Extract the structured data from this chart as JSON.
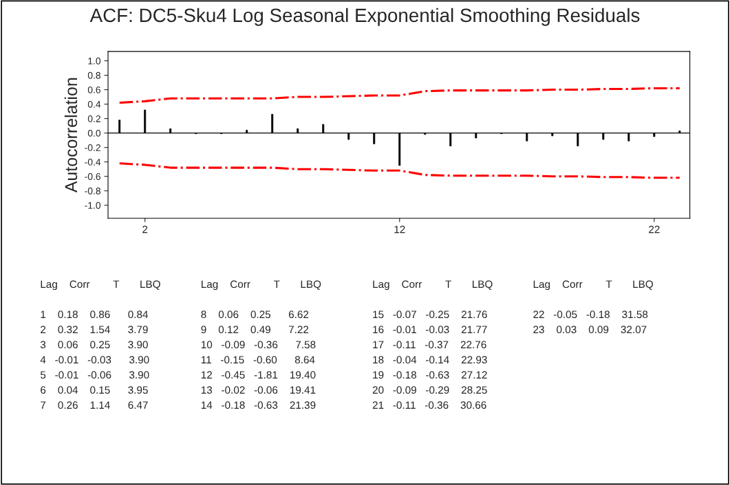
{
  "chart_data": {
    "type": "bar",
    "title": "ACF: DC5-Sku4 Log Seasonal Exponential Smoothing Residuals",
    "ylabel": "Autocorrelation",
    "x": [
      1,
      2,
      3,
      4,
      5,
      6,
      7,
      8,
      9,
      10,
      11,
      12,
      13,
      14,
      15,
      16,
      17,
      18,
      19,
      20,
      21,
      22,
      23
    ],
    "xlim": [
      0.55,
      23.4
    ],
    "xticks": [
      2,
      12,
      22
    ],
    "ylim": [
      -1.18,
      1.13
    ],
    "yticks": [
      {
        "value": -1.0,
        "label": "-1.0"
      },
      {
        "value": -0.8,
        "label": "-0.8"
      },
      {
        "value": -0.6,
        "label": "-0.6"
      },
      {
        "value": -0.4,
        "label": "-0.4"
      },
      {
        "value": -0.2,
        "label": "-0.2"
      },
      {
        "value": 0.0,
        "label": "0.0"
      },
      {
        "value": 0.2,
        "label": "0.2"
      },
      {
        "value": 0.4,
        "label": "0.4"
      },
      {
        "value": 0.6,
        "label": "0.6"
      },
      {
        "value": 0.8,
        "label": "0.8"
      },
      {
        "value": 1.0,
        "label": "1.0"
      }
    ],
    "grid": false,
    "legend": false,
    "series": [
      {
        "color": "#000000",
        "values": [
          0.18,
          0.32,
          0.06,
          -0.01,
          -0.01,
          0.04,
          0.26,
          0.06,
          0.12,
          -0.09,
          -0.15,
          -0.45,
          -0.02,
          -0.18,
          -0.07,
          -0.01,
          -0.11,
          -0.04,
          -0.18,
          -0.09,
          -0.11,
          -0.05,
          0.03
        ]
      },
      {
        "type": "line",
        "color": "#ff0000",
        "line_style": "dashed",
        "values": [
          0.42,
          0.44,
          0.48,
          0.48,
          0.48,
          0.48,
          0.48,
          0.5,
          0.5,
          0.51,
          0.52,
          0.52,
          0.58,
          0.59,
          0.59,
          0.59,
          0.59,
          0.6,
          0.6,
          0.61,
          0.61,
          0.62,
          0.62
        ]
      },
      {
        "type": "line",
        "color": "#ff0000",
        "line_style": "dashed",
        "values": [
          -0.42,
          -0.44,
          -0.48,
          -0.48,
          -0.48,
          -0.48,
          -0.48,
          -0.5,
          -0.5,
          -0.51,
          -0.52,
          -0.52,
          -0.58,
          -0.59,
          -0.59,
          -0.59,
          -0.59,
          -0.6,
          -0.6,
          -0.61,
          -0.61,
          -0.62,
          -0.62
        ]
      }
    ],
    "ref_lines": [
      {
        "axis": "y",
        "value": 0,
        "color": "#000000",
        "line_style": "solid"
      }
    ],
    "annotations": [
      "Lag    Corr        T       LBQ",
      "1    0.18    0.86      0.84",
      "2    0.32    1.54      3.79",
      "3    0.06    0.25      3.90",
      "4   -0.01   -0.03      3.90",
      "5   -0.01   -0.06      3.90",
      "6    0.04    0.15      3.95",
      "7    0.26    1.14      6.47",
      "Lag    Corr        T       LBQ",
      "8    0.06    0.25      6.62",
      "9    0.12    0.49      7.22",
      "10   -0.09   -0.36      7.58",
      "11   -0.15   -0.60      8.64",
      "12   -0.45   -1.81    19.40",
      "13   -0.02   -0.06    19.41",
      "14   -0.18   -0.63    21.39",
      "Lag    Corr        T       LBQ",
      "15   -0.07   -0.25    21.76",
      "16   -0.01   -0.03    21.77",
      "17   -0.11   -0.37    22.76",
      "18   -0.04   -0.14    22.93",
      "19   -0.18   -0.63    27.12",
      "20   -0.09   -0.29    28.25",
      "21   -0.11   -0.36    30.66",
      "Lag    Corr        T       LBQ",
      "22   -0.05   -0.18    31.58",
      "23    0.03    0.09    32.07"
    ]
  }
}
